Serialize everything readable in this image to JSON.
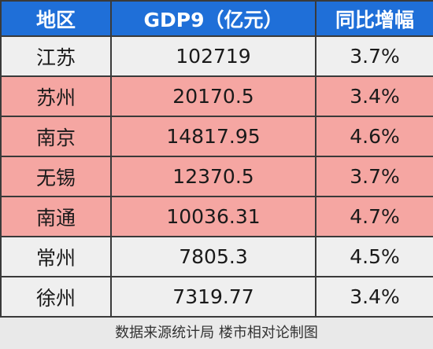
{
  "table": {
    "header": [
      "地区",
      "GDP9（亿元）",
      "同比增幅"
    ],
    "rows": [
      [
        "江苏",
        "102719",
        "3.7%"
      ],
      [
        "苏州",
        "20170.5",
        "3.4%"
      ],
      [
        "南京",
        "14817.95",
        "4.6%"
      ],
      [
        "无锡",
        "12370.5",
        "3.7%"
      ],
      [
        "南通",
        "10036.31",
        "4.7%"
      ],
      [
        "常州",
        "7805.3",
        "4.5%"
      ],
      [
        "徐州",
        "7319.77",
        "3.4%"
      ]
    ],
    "row_colors": [
      "#efefef",
      "#f5a6a2",
      "#f5a6a2",
      "#f5a6a2",
      "#f5a6a2",
      "#efefef",
      "#efefef"
    ]
  },
  "footer": "数据来源统计局  楼市相对论制图"
}
